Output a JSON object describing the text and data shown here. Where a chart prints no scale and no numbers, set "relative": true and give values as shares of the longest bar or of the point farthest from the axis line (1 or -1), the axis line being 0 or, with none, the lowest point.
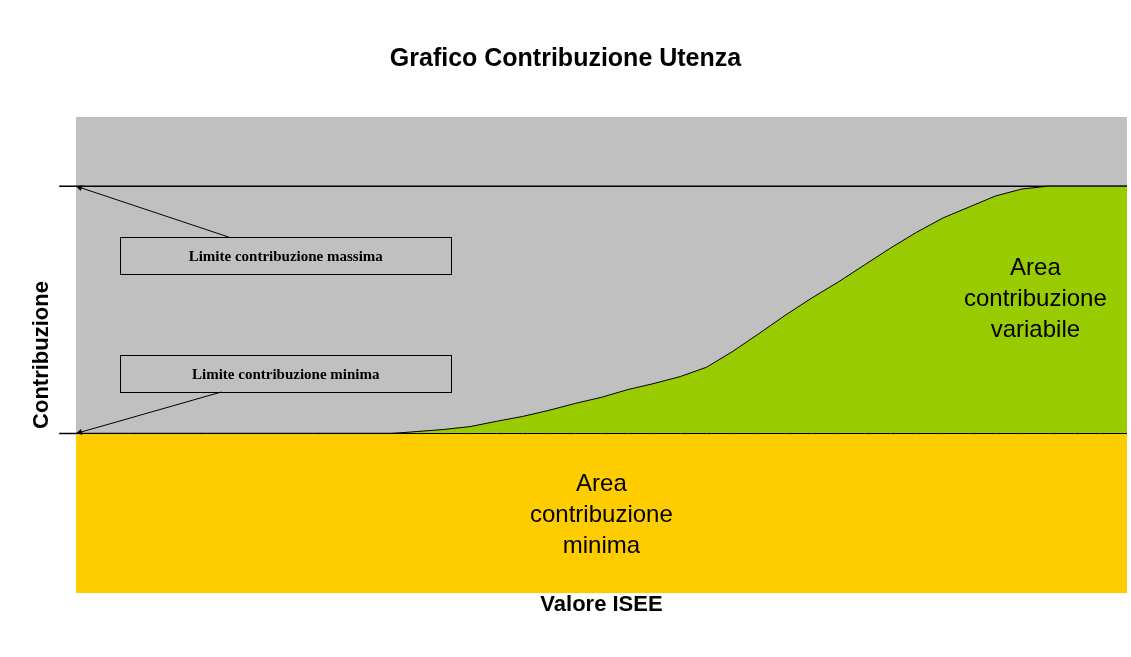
{
  "chart_data": {
    "type": "area",
    "title": "Grafico Contribuzione Utenza",
    "xlabel": "Valore ISEE",
    "ylabel": "Contribuzione",
    "relative": true,
    "legend": false,
    "grid": false,
    "categories": [
      null,
      null,
      null,
      null,
      null,
      null,
      null,
      null,
      null,
      null,
      null,
      null,
      null,
      null,
      null,
      null,
      null,
      null,
      null,
      null,
      null,
      null,
      null,
      null,
      null,
      null,
      null,
      null,
      null,
      null,
      null,
      null,
      null,
      null,
      null,
      null,
      null,
      null,
      null,
      null,
      null
    ],
    "series": [
      {
        "name": "Area contribuzione variabile",
        "color": "#99cc00",
        "values": [
          0.392,
          0.392,
          0.392,
          0.392,
          0.392,
          0.392,
          0.392,
          0.392,
          0.392,
          0.392,
          0.392,
          0.392,
          0.392,
          0.397,
          0.402,
          0.409,
          0.422,
          0.434,
          0.449,
          0.466,
          0.481,
          0.5,
          0.515,
          0.532,
          0.555,
          0.594,
          0.638,
          0.683,
          0.725,
          0.764,
          0.806,
          0.848,
          0.887,
          0.922,
          0.949,
          0.976,
          0.993,
          1,
          1,
          1,
          1
        ]
      },
      {
        "name": "Area contribuzione minima",
        "color": "#ffcc00",
        "values": [
          0.392,
          0.392,
          0.392,
          0.392,
          0.392,
          0.392,
          0.392,
          0.392,
          0.392,
          0.392,
          0.392,
          0.392,
          0.392,
          0.392,
          0.392,
          0.392,
          0.392,
          0.392,
          0.392,
          0.392,
          0.392,
          0.392,
          0.392,
          0.392,
          0.392,
          0.392,
          0.392,
          0.392,
          0.392,
          0.392,
          0.392,
          0.392,
          0.392,
          0.392,
          0.392,
          0.392,
          0.392,
          0.392,
          0.392,
          0.392,
          0.392
        ]
      }
    ],
    "ref_lines": [
      {
        "axis": "y",
        "value": 1,
        "label": "Limite contribuzione massima",
        "color": "#000000"
      },
      {
        "axis": "y",
        "value": 0.392,
        "label": "Limite contribuzione minima",
        "color": "#000000"
      }
    ]
  }
}
